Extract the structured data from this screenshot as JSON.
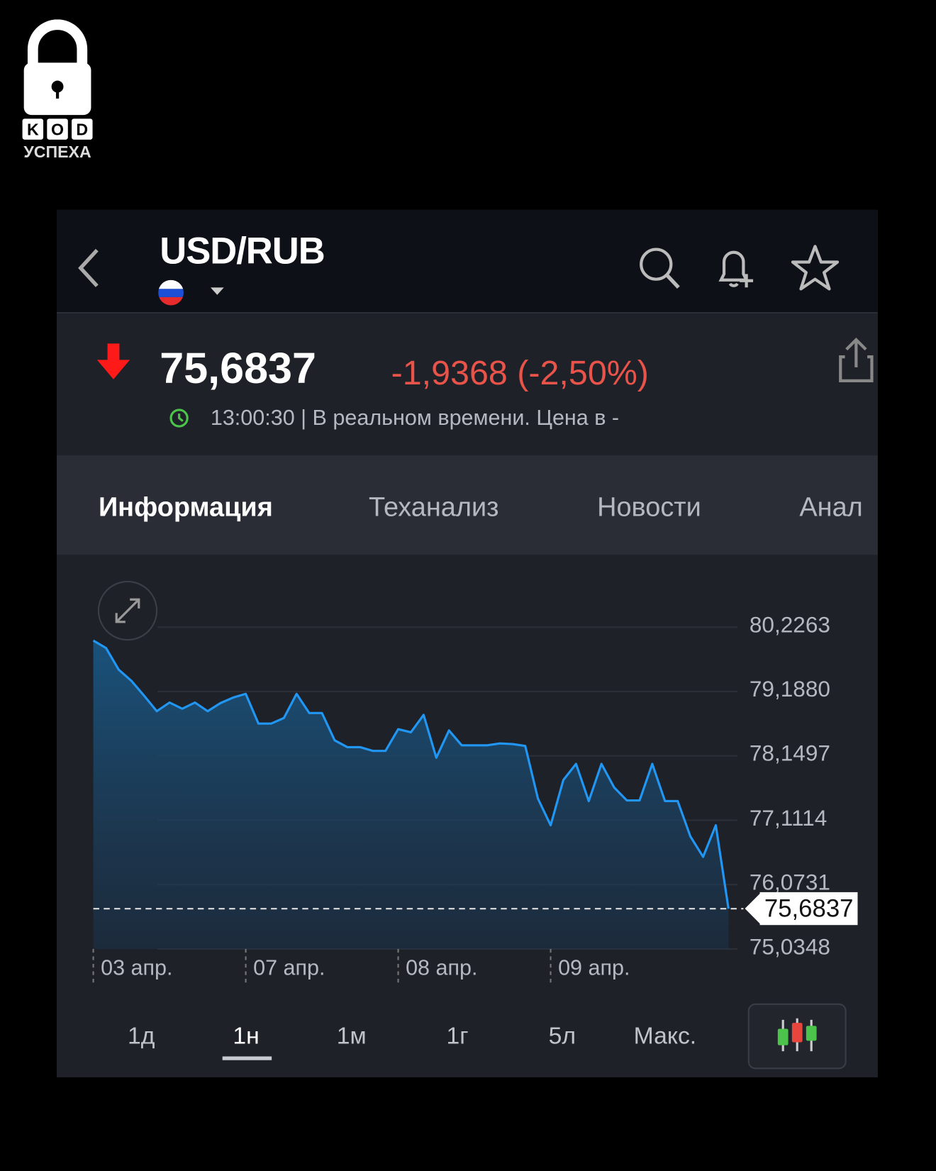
{
  "logo": {
    "text_top": "KOD",
    "text_bottom": "УСПЕХА"
  },
  "header": {
    "title": "USD/RUB",
    "flag": "russia-flag",
    "back": "chevron-left-icon",
    "actions": [
      "search-icon",
      "bell-plus-icon",
      "star-icon"
    ]
  },
  "quote": {
    "price": "75,6837",
    "change": "-1,9368 (-2,50%)",
    "direction": "down",
    "status": "13:00:30 | В реальном времени. Цена в -",
    "colors": {
      "down": "#e8534a",
      "arrow": "#ff1a1a",
      "clock": "#4cc34a"
    }
  },
  "tabs": [
    {
      "label": "Информация",
      "active": true
    },
    {
      "label": "Теханализ",
      "active": false
    },
    {
      "label": "Новости",
      "active": false
    },
    {
      "label": "Анал",
      "active": false
    }
  ],
  "periods": [
    {
      "label": "1д",
      "active": false
    },
    {
      "label": "1н",
      "active": true
    },
    {
      "label": "1м",
      "active": false
    },
    {
      "label": "1г",
      "active": false
    },
    {
      "label": "5л",
      "active": false
    },
    {
      "label": "Макс.",
      "active": false
    }
  ],
  "chart_data": {
    "type": "area",
    "line_color": "#2196f3",
    "y_ticks": [
      "80,2263",
      "79,1880",
      "78,1497",
      "77,1114",
      "76,0731",
      "75,0348"
    ],
    "y_tick_values": [
      80.2263,
      79.188,
      78.1497,
      77.1114,
      76.0731,
      75.0348
    ],
    "ylim": [
      75.0348,
      80.2263
    ],
    "x_ticks": [
      {
        "label": "03 апр.",
        "index": 0
      },
      {
        "label": "07 апр.",
        "index": 12
      },
      {
        "label": "08 апр.",
        "index": 24
      },
      {
        "label": "09 апр.",
        "index": 36
      }
    ],
    "current_value_label": "75,6837",
    "current_value": 75.6837,
    "grid": true,
    "values": [
      80.01,
      79.89,
      79.54,
      79.36,
      79.12,
      78.87,
      79.01,
      78.91,
      79.01,
      78.87,
      79.0,
      79.09,
      79.15,
      78.67,
      78.67,
      78.76,
      79.15,
      78.84,
      78.84,
      78.4,
      78.29,
      78.29,
      78.23,
      78.23,
      78.58,
      78.53,
      78.81,
      78.12,
      78.56,
      78.32,
      78.32,
      78.32,
      78.35,
      78.34,
      78.31,
      77.46,
      77.03,
      77.76,
      78.02,
      77.42,
      78.02,
      77.64,
      77.43,
      77.43,
      78.02,
      77.42,
      77.42,
      76.85,
      76.52,
      77.03,
      75.6837
    ]
  }
}
